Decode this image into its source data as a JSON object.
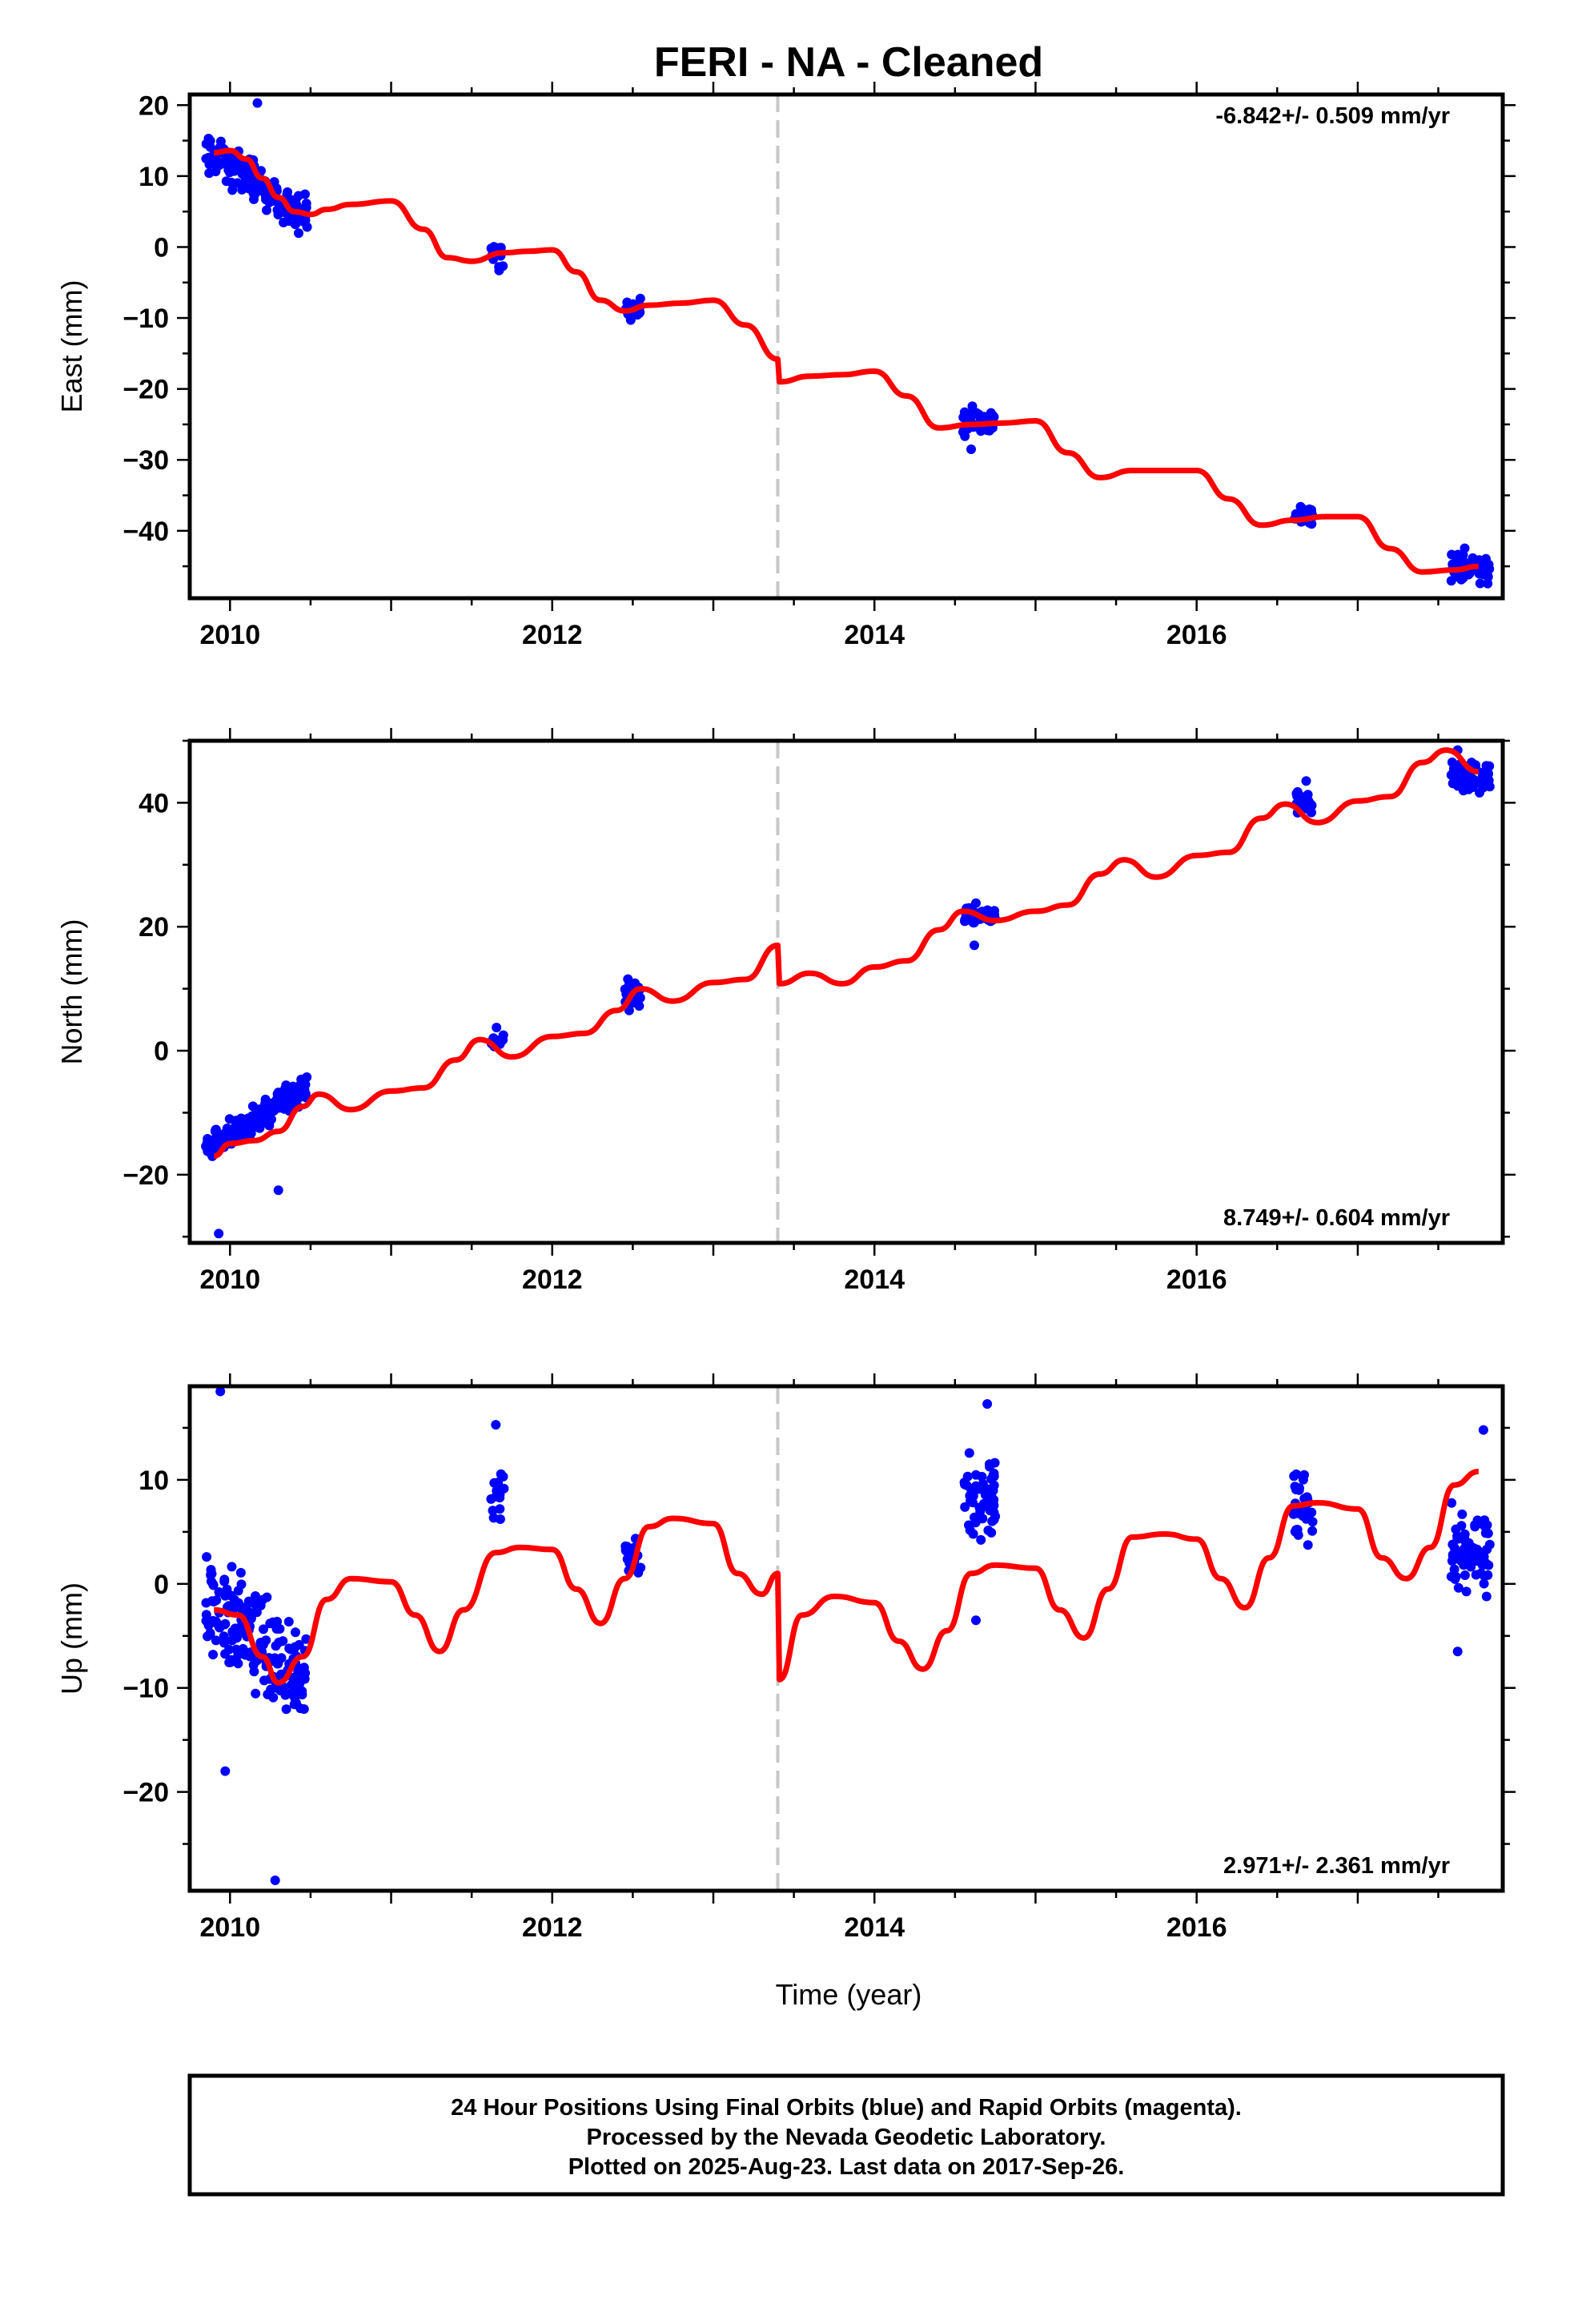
{
  "chart_data": {
    "type": "scatter",
    "title": "FERI  - NA - Cleaned",
    "xlabel": "Time (year)",
    "xlim": [
      2009.75,
      2017.9
    ],
    "x_ticks": [
      2010,
      2012,
      2014,
      2016
    ],
    "x_tick_labels": [
      "2010",
      "2012",
      "2014",
      "2016"
    ],
    "event_line_x": 2013.4,
    "series_colors": {
      "final": "#0000ff",
      "model": "#ff0000",
      "event": "#c8c8c8"
    },
    "panels": [
      {
        "name": "east",
        "ylabel": "East (mm)",
        "ylim": [
          -49.5,
          21.5
        ],
        "y_ticks": [
          20,
          10,
          0,
          -10,
          -20,
          -30,
          -40
        ],
        "y_tick_labels": [
          "20",
          "10",
          "0",
          "−10",
          "−20",
          "−30",
          "−40"
        ],
        "rate_text": "-6.842+/- 0.509 mm/yr",
        "rate_position": "top-right",
        "model": {
          "x": [
            2009.9,
            2010.0,
            2010.1,
            2010.2,
            2010.3,
            2010.4,
            2010.5,
            2010.6,
            2010.75,
            2011.0,
            2011.2,
            2011.35,
            2011.5,
            2011.7,
            2011.85,
            2012.0,
            2012.15,
            2012.3,
            2012.45,
            2012.6,
            2012.8,
            2013.0,
            2013.2,
            2013.4,
            2013.41,
            2013.6,
            2013.8,
            2014.0,
            2014.2,
            2014.4,
            2014.6,
            2014.8,
            2015.0,
            2015.2,
            2015.4,
            2015.6,
            2015.8,
            2016.0,
            2016.2,
            2016.4,
            2016.6,
            2016.8,
            2017.0,
            2017.2,
            2017.4,
            2017.6,
            2017.75
          ],
          "y": [
            13.3,
            13.6,
            12.4,
            9.7,
            7.0,
            5.0,
            4.6,
            5.3,
            6.0,
            6.5,
            2.5,
            -1.5,
            -2.0,
            -0.8,
            -0.6,
            -0.4,
            -3.5,
            -7.5,
            -9.0,
            -8.2,
            -7.9,
            -7.5,
            -11.0,
            -15.8,
            -19.0,
            -18.2,
            -18.0,
            -17.5,
            -21.0,
            -25.5,
            -25.0,
            -24.8,
            -24.5,
            -29.0,
            -32.5,
            -31.5,
            -31.5,
            -31.5,
            -35.5,
            -39.2,
            -38.5,
            -38.0,
            -38.0,
            -42.5,
            -45.8,
            -45.5,
            -45.0
          ]
        },
        "clusters": [
          {
            "x_range": [
              2009.85,
              2010.48
            ],
            "y_start": 13.5,
            "y_end": 4.2,
            "spread": 2.2,
            "n": 170
          },
          {
            "x_range": [
              2011.62,
              2011.7
            ],
            "y_start": -0.8,
            "y_end": -0.8,
            "spread": 1.5,
            "n": 10
          },
          {
            "x_range": [
              2012.45,
              2012.55
            ],
            "y_start": -9.0,
            "y_end": -9.0,
            "spread": 1.4,
            "n": 22
          },
          {
            "x_range": [
              2014.55,
              2014.75
            ],
            "y_start": -24.5,
            "y_end": -24.5,
            "spread": 1.6,
            "n": 55
          },
          {
            "x_range": [
              2016.6,
              2016.72
            ],
            "y_start": -38.0,
            "y_end": -38.0,
            "spread": 1.4,
            "n": 28
          },
          {
            "x_range": [
              2017.58,
              2017.82
            ],
            "y_start": -45.0,
            "y_end": -45.0,
            "spread": 1.6,
            "n": 70
          }
        ],
        "outliers": [
          {
            "x": 2010.17,
            "y": 20.3
          },
          {
            "x": 2011.67,
            "y": -3.3
          },
          {
            "x": 2014.6,
            "y": -28.5
          }
        ]
      },
      {
        "name": "north",
        "ylabel": "North (mm)",
        "ylim": [
          -31.0,
          50.0
        ],
        "y_ticks": [
          40,
          20,
          0,
          -20
        ],
        "y_tick_labels": [
          "40",
          "20",
          "0",
          "−20"
        ],
        "rate_text": "8.749+/- 0.604 mm/yr",
        "rate_position": "bottom-right",
        "model": {
          "x": [
            2009.9,
            2010.0,
            2010.15,
            2010.3,
            2010.45,
            2010.55,
            2010.75,
            2011.0,
            2011.2,
            2011.4,
            2011.55,
            2011.75,
            2012.0,
            2012.2,
            2012.4,
            2012.55,
            2012.75,
            2013.0,
            2013.2,
            2013.4,
            2013.41,
            2013.6,
            2013.8,
            2014.0,
            2014.2,
            2014.4,
            2014.55,
            2014.75,
            2015.0,
            2015.2,
            2015.4,
            2015.55,
            2015.75,
            2016.0,
            2016.2,
            2016.4,
            2016.55,
            2016.75,
            2017.0,
            2017.2,
            2017.4,
            2017.55,
            2017.75
          ],
          "y": [
            -17.0,
            -15.0,
            -14.5,
            -13.0,
            -9.0,
            -7.0,
            -9.5,
            -6.5,
            -6.0,
            -1.5,
            1.8,
            -1.0,
            2.3,
            2.8,
            6.5,
            10.0,
            8.0,
            11.0,
            11.5,
            17.0,
            10.8,
            12.5,
            10.8,
            13.5,
            14.5,
            19.5,
            22.5,
            21.0,
            22.5,
            23.5,
            28.5,
            30.8,
            28.0,
            31.5,
            32.0,
            37.5,
            39.8,
            36.8,
            40.3,
            41.0,
            46.5,
            48.5,
            45.0
          ]
        },
        "clusters": [
          {
            "x_range": [
              2009.85,
              2010.48
            ],
            "y_start": -16.0,
            "y_end": -6.0,
            "spread": 1.8,
            "n": 180
          },
          {
            "x_range": [
              2011.62,
              2011.7
            ],
            "y_start": 1.5,
            "y_end": 1.5,
            "spread": 1.5,
            "n": 10
          },
          {
            "x_range": [
              2012.45,
              2012.55
            ],
            "y_start": 9.0,
            "y_end": 9.0,
            "spread": 2.0,
            "n": 22
          },
          {
            "x_range": [
              2014.55,
              2014.75
            ],
            "y_start": 22.0,
            "y_end": 22.0,
            "spread": 1.2,
            "n": 55
          },
          {
            "x_range": [
              2016.6,
              2016.72
            ],
            "y_start": 40.0,
            "y_end": 40.0,
            "spread": 1.5,
            "n": 28
          },
          {
            "x_range": [
              2017.58,
              2017.82
            ],
            "y_start": 44.0,
            "y_end": 44.0,
            "spread": 1.7,
            "n": 70
          }
        ],
        "outliers": [
          {
            "x": 2009.93,
            "y": -29.5
          },
          {
            "x": 2010.3,
            "y": -22.5
          },
          {
            "x": 2014.62,
            "y": 17.0
          },
          {
            "x": 2016.68,
            "y": 43.5
          },
          {
            "x": 2017.62,
            "y": 48.5
          }
        ]
      },
      {
        "name": "up",
        "ylabel": "Up (mm)",
        "ylim": [
          -29.5,
          19.0
        ],
        "y_ticks": [
          10,
          0,
          -10,
          -20
        ],
        "y_tick_labels": [
          "10",
          "0",
          "−10",
          "−20"
        ],
        "rate_text": "2.971+/- 2.361 mm/yr",
        "rate_position": "bottom-right",
        "model": {
          "x": [
            2009.9,
            2010.05,
            2010.2,
            2010.3,
            2010.45,
            2010.6,
            2010.75,
            2011.0,
            2011.15,
            2011.3,
            2011.45,
            2011.65,
            2011.8,
            2012.0,
            2012.15,
            2012.3,
            2012.45,
            2012.6,
            2012.75,
            2013.0,
            2013.15,
            2013.3,
            2013.4,
            2013.41,
            2013.55,
            2013.75,
            2014.0,
            2014.15,
            2014.3,
            2014.45,
            2014.6,
            2014.75,
            2015.0,
            2015.15,
            2015.3,
            2015.45,
            2015.6,
            2015.8,
            2016.0,
            2016.15,
            2016.3,
            2016.45,
            2016.6,
            2016.75,
            2017.0,
            2017.15,
            2017.3,
            2017.45,
            2017.6,
            2017.75
          ],
          "y": [
            -2.5,
            -3.0,
            -7.0,
            -9.5,
            -7.0,
            -1.5,
            0.5,
            0.2,
            -3.0,
            -6.5,
            -2.5,
            3.0,
            3.5,
            3.3,
            -0.5,
            -3.8,
            0.5,
            5.5,
            6.3,
            5.8,
            1.0,
            -1.0,
            1.0,
            -9.2,
            -3.0,
            -1.2,
            -1.8,
            -5.5,
            -8.2,
            -4.5,
            1.0,
            1.8,
            1.5,
            -2.5,
            -5.2,
            -0.5,
            4.5,
            4.8,
            4.3,
            0.5,
            -2.3,
            2.5,
            7.5,
            7.8,
            7.2,
            2.5,
            0.5,
            3.5,
            9.5,
            10.8
          ]
        },
        "clusters": [
          {
            "x_range": [
              2009.85,
              2010.48
            ],
            "y_start": -1.5,
            "y_end": -9.0,
            "spread": 3.8,
            "n": 180
          },
          {
            "x_range": [
              2011.62,
              2011.7
            ],
            "y_start": 8.0,
            "y_end": 8.0,
            "spread": 2.5,
            "n": 14
          },
          {
            "x_range": [
              2012.45,
              2012.55
            ],
            "y_start": 2.5,
            "y_end": 2.5,
            "spread": 2.5,
            "n": 18
          },
          {
            "x_range": [
              2014.55,
              2014.75
            ],
            "y_start": 8.5,
            "y_end": 8.5,
            "spread": 3.5,
            "n": 60
          },
          {
            "x_range": [
              2016.6,
              2016.72
            ],
            "y_start": 7.5,
            "y_end": 7.5,
            "spread": 3.0,
            "n": 35
          },
          {
            "x_range": [
              2017.58,
              2017.82
            ],
            "y_start": 3.0,
            "y_end": 3.0,
            "spread": 3.5,
            "n": 75
          }
        ],
        "outliers": [
          {
            "x": 2009.94,
            "y": 18.5
          },
          {
            "x": 2010.28,
            "y": -28.5
          },
          {
            "x": 2009.97,
            "y": -18.0
          },
          {
            "x": 2011.65,
            "y": 15.3
          },
          {
            "x": 2014.63,
            "y": -3.5
          },
          {
            "x": 2014.7,
            "y": 17.3
          },
          {
            "x": 2017.62,
            "y": -6.5
          },
          {
            "x": 2017.78,
            "y": 14.8
          }
        ]
      }
    ]
  },
  "footer": {
    "line1": "24 Hour Positions Using Final Orbits (blue) and Rapid Orbits (magenta).",
    "line2": "Processed by the Nevada Geodetic Laboratory.",
    "line3": "Plotted on 2025-Aug-23. Last data on 2017-Sep-26."
  }
}
